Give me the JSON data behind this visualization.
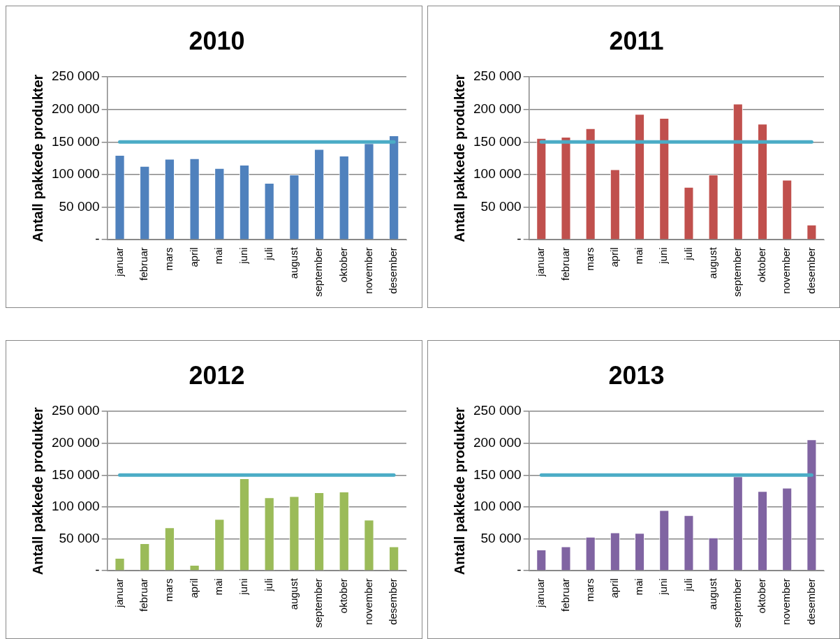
{
  "chart_data": [
    {
      "type": "bar",
      "title": "2010",
      "ylabel": "Antall pakkede produkter",
      "categories": [
        "januar",
        "februar",
        "mars",
        "april",
        "mai",
        "juni",
        "juli",
        "august",
        "september",
        "oktober",
        "november",
        "desember"
      ],
      "values": [
        130000,
        113000,
        124000,
        125000,
        110000,
        115000,
        87000,
        100000,
        139000,
        129000,
        148000,
        160000
      ],
      "color": "#4f81bd",
      "ylim": [
        0,
        250000
      ],
      "yticks": [
        {
          "value": 0,
          "label": "-"
        },
        {
          "value": 50000,
          "label": "50 000"
        },
        {
          "value": 100000,
          "label": "100 000"
        },
        {
          "value": 150000,
          "label": "150 000"
        },
        {
          "value": 200000,
          "label": "200 000"
        },
        {
          "value": 250000,
          "label": "250 000"
        }
      ],
      "grid": "y",
      "legend": false,
      "ref_lines": [
        {
          "axis": "y",
          "value": 150000,
          "color": "#4bacc6"
        }
      ]
    },
    {
      "type": "bar",
      "title": "2011",
      "ylabel": "Antall pakkede produkter",
      "categories": [
        "januar",
        "februar",
        "mars",
        "april",
        "mai",
        "juni",
        "juli",
        "august",
        "september",
        "oktober",
        "november",
        "desember"
      ],
      "values": [
        156000,
        158000,
        171000,
        108000,
        193000,
        187000,
        81000,
        100000,
        209000,
        178000,
        92000,
        23000
      ],
      "color": "#c0504d",
      "ylim": [
        0,
        250000
      ],
      "yticks": [
        {
          "value": 0,
          "label": "-"
        },
        {
          "value": 50000,
          "label": "50 000"
        },
        {
          "value": 100000,
          "label": "100 000"
        },
        {
          "value": 150000,
          "label": "150 000"
        },
        {
          "value": 200000,
          "label": "200 000"
        },
        {
          "value": 250000,
          "label": "250 000"
        }
      ],
      "grid": "y",
      "legend": false,
      "ref_lines": [
        {
          "axis": "y",
          "value": 150000,
          "color": "#4bacc6"
        }
      ]
    },
    {
      "type": "bar",
      "title": "2012",
      "ylabel": "Antall pakkede produkter",
      "categories": [
        "januar",
        "februar",
        "mars",
        "april",
        "mai",
        "juni",
        "juli",
        "august",
        "september",
        "oktober",
        "november",
        "desember"
      ],
      "values": [
        20000,
        43000,
        68000,
        9000,
        81000,
        145000,
        115000,
        117000,
        123000,
        124000,
        80000,
        38000
      ],
      "color": "#9bbb59",
      "ylim": [
        0,
        250000
      ],
      "yticks": [
        {
          "value": 0,
          "label": "-"
        },
        {
          "value": 50000,
          "label": "50 000"
        },
        {
          "value": 100000,
          "label": "100 000"
        },
        {
          "value": 150000,
          "label": "150 000"
        },
        {
          "value": 200000,
          "label": "200 000"
        },
        {
          "value": 250000,
          "label": "250 000"
        }
      ],
      "grid": "y",
      "legend": false,
      "ref_lines": [
        {
          "axis": "y",
          "value": 150000,
          "color": "#4bacc6"
        }
      ]
    },
    {
      "type": "bar",
      "title": "2013",
      "ylabel": "Antall pakkede produkter",
      "categories": [
        "januar",
        "februar",
        "mars",
        "april",
        "mai",
        "juni",
        "juli",
        "august",
        "september",
        "oktober",
        "november",
        "desember"
      ],
      "values": [
        33000,
        38000,
        53000,
        60000,
        59000,
        95000,
        87000,
        52000,
        148000,
        125000,
        130000,
        206000
      ],
      "color": "#8064a2",
      "ylim": [
        0,
        250000
      ],
      "yticks": [
        {
          "value": 0,
          "label": "-"
        },
        {
          "value": 50000,
          "label": "50 000"
        },
        {
          "value": 100000,
          "label": "100 000"
        },
        {
          "value": 150000,
          "label": "150 000"
        },
        {
          "value": 200000,
          "label": "200 000"
        },
        {
          "value": 250000,
          "label": "250 000"
        }
      ],
      "grid": "y",
      "legend": false,
      "ref_lines": [
        {
          "axis": "y",
          "value": 150000,
          "color": "#4bacc6"
        }
      ]
    }
  ]
}
